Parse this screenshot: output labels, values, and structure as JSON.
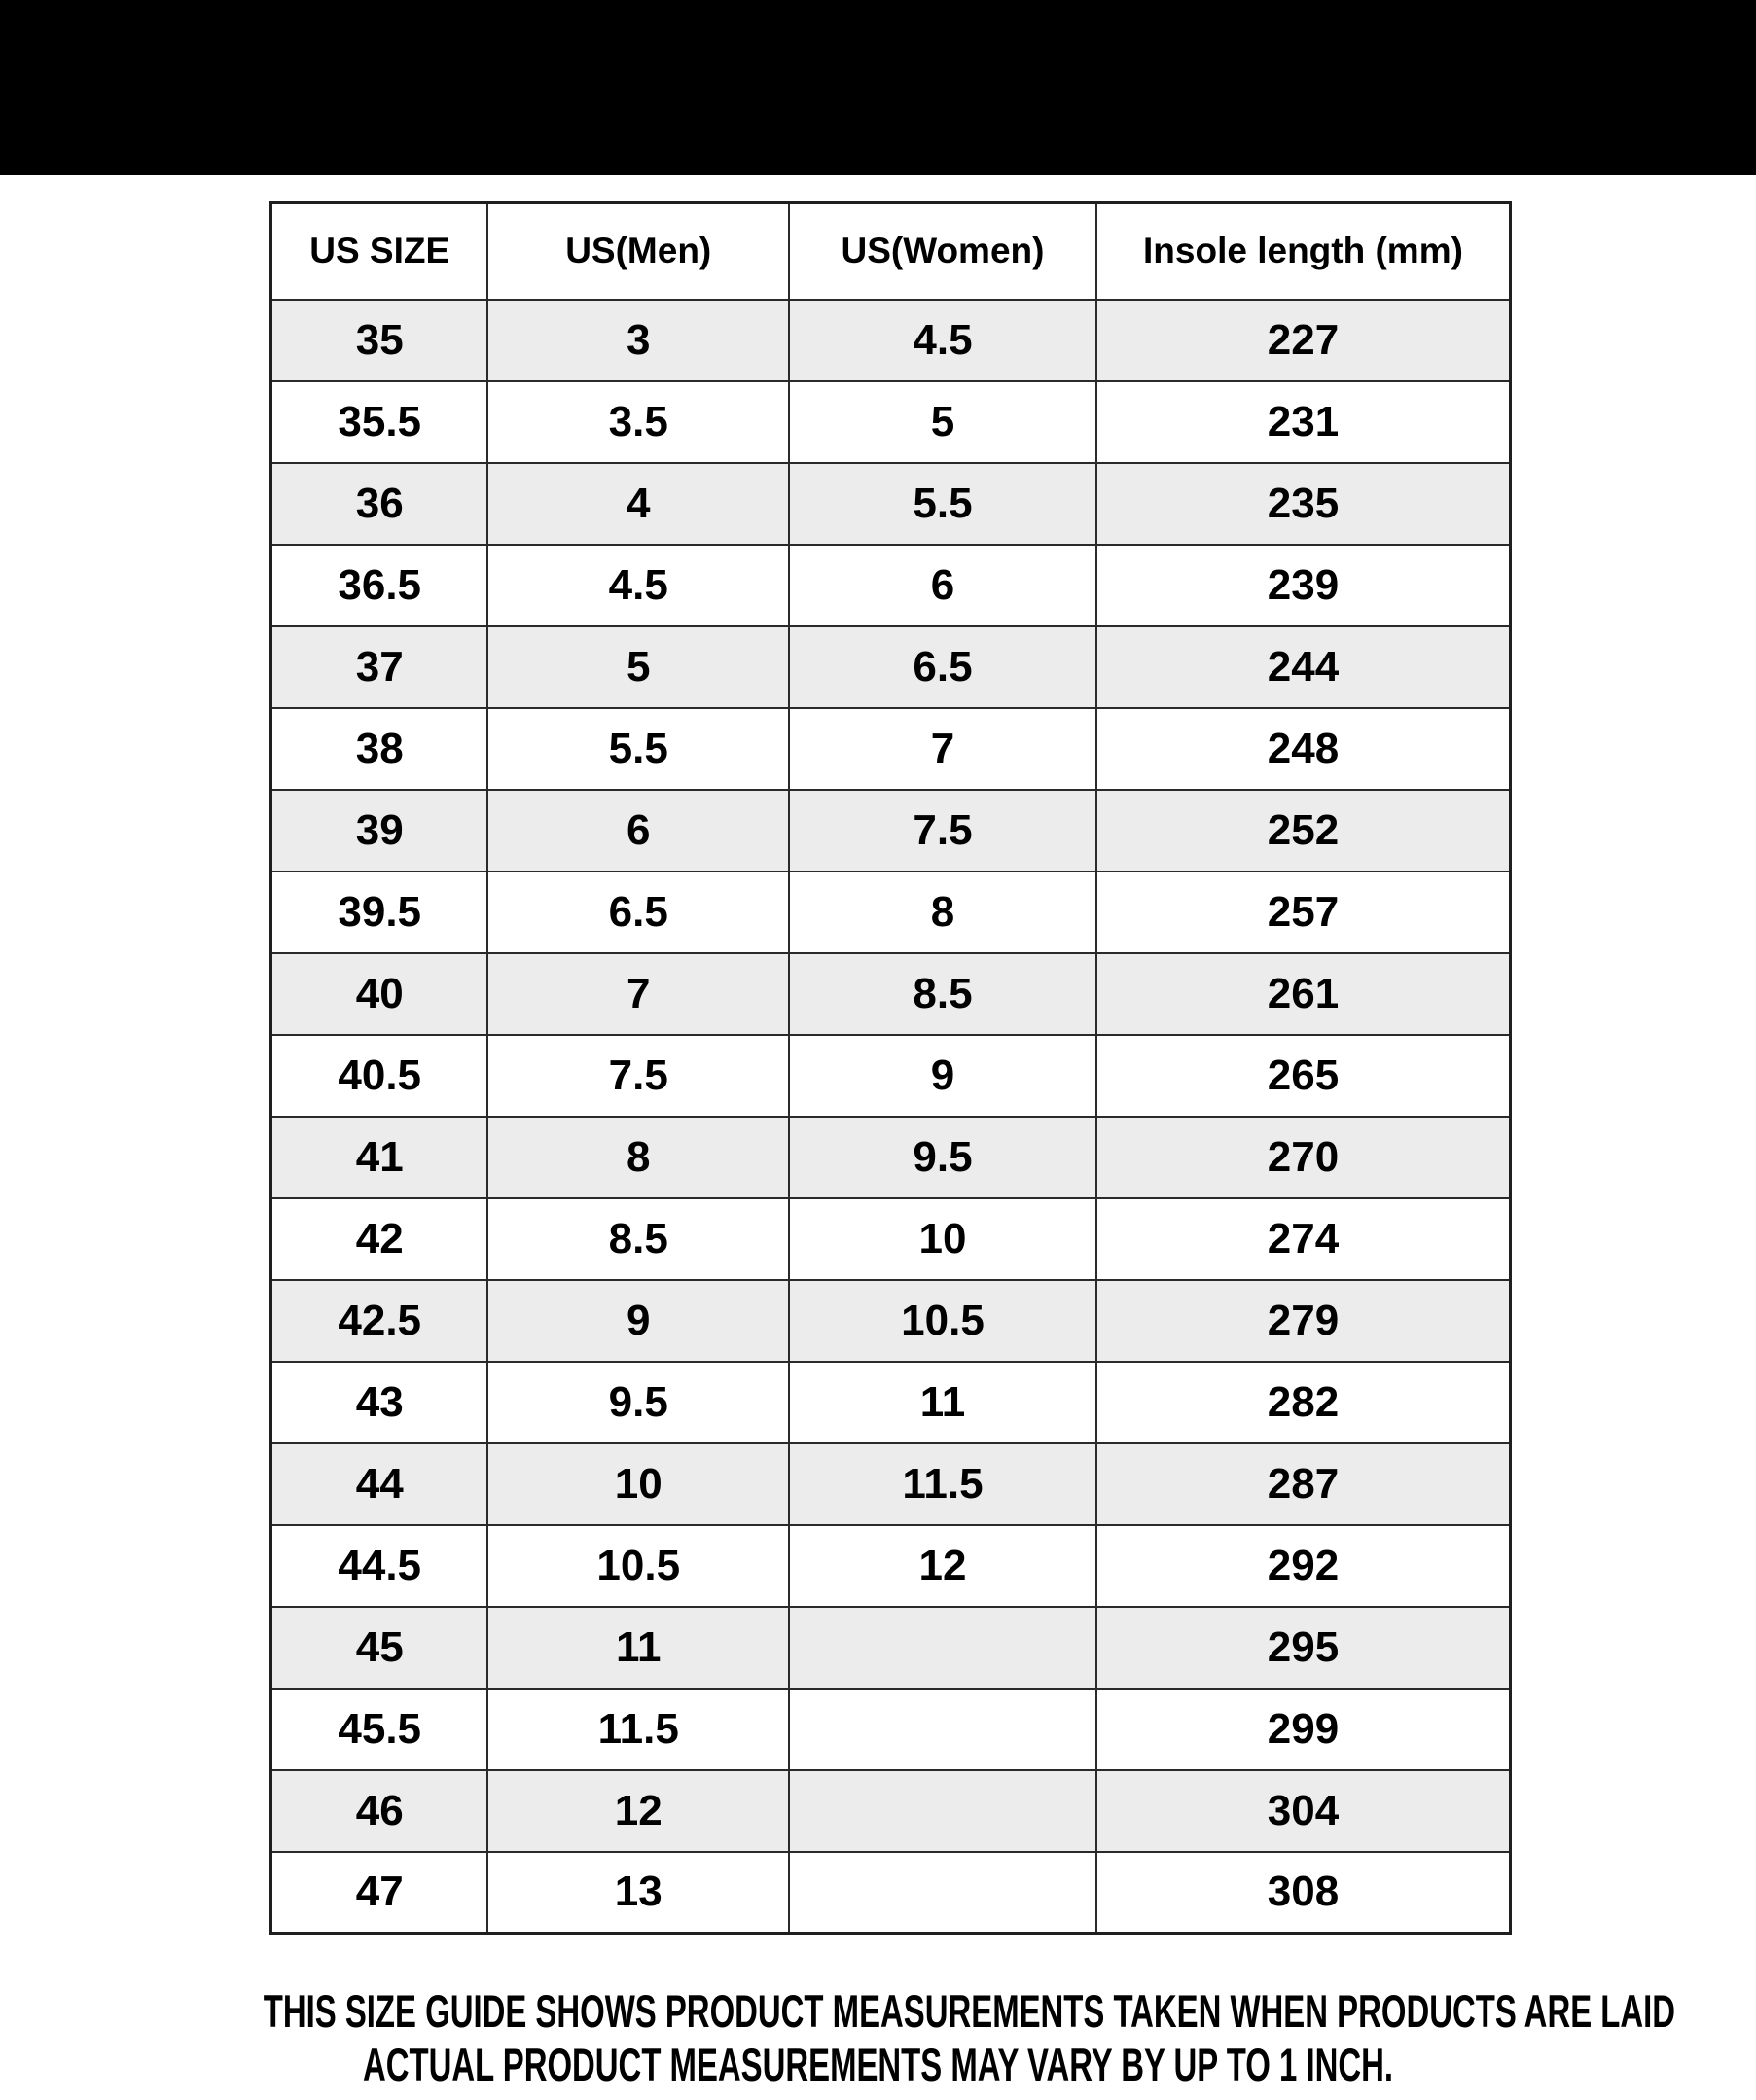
{
  "banner": {
    "color": "#000000"
  },
  "table": {
    "headers": [
      "US SIZE",
      "US(Men)",
      "US(Women)",
      "Insole length (mm)"
    ],
    "rows": [
      {
        "us_size": "35",
        "us_men": "3",
        "us_women": "4.5",
        "insole_mm": "227"
      },
      {
        "us_size": "35.5",
        "us_men": "3.5",
        "us_women": "5",
        "insole_mm": "231"
      },
      {
        "us_size": "36",
        "us_men": "4",
        "us_women": "5.5",
        "insole_mm": "235"
      },
      {
        "us_size": "36.5",
        "us_men": "4.5",
        "us_women": "6",
        "insole_mm": "239"
      },
      {
        "us_size": "37",
        "us_men": "5",
        "us_women": "6.5",
        "insole_mm": "244"
      },
      {
        "us_size": "38",
        "us_men": "5.5",
        "us_women": "7",
        "insole_mm": "248"
      },
      {
        "us_size": "39",
        "us_men": "6",
        "us_women": "7.5",
        "insole_mm": "252"
      },
      {
        "us_size": "39.5",
        "us_men": "6.5",
        "us_women": "8",
        "insole_mm": "257"
      },
      {
        "us_size": "40",
        "us_men": "7",
        "us_women": "8.5",
        "insole_mm": "261"
      },
      {
        "us_size": "40.5",
        "us_men": "7.5",
        "us_women": "9",
        "insole_mm": "265"
      },
      {
        "us_size": "41",
        "us_men": "8",
        "us_women": "9.5",
        "insole_mm": "270"
      },
      {
        "us_size": "42",
        "us_men": "8.5",
        "us_women": "10",
        "insole_mm": "274"
      },
      {
        "us_size": "42.5",
        "us_men": "9",
        "us_women": "10.5",
        "insole_mm": "279"
      },
      {
        "us_size": "43",
        "us_men": "9.5",
        "us_women": "11",
        "insole_mm": "282"
      },
      {
        "us_size": "44",
        "us_men": "10",
        "us_women": "11.5",
        "insole_mm": "287"
      },
      {
        "us_size": "44.5",
        "us_men": "10.5",
        "us_women": "12",
        "insole_mm": "292"
      },
      {
        "us_size": "45",
        "us_men": "11",
        "us_women": "",
        "insole_mm": "295"
      },
      {
        "us_size": "45.5",
        "us_men": "11.5",
        "us_women": "",
        "insole_mm": "299"
      },
      {
        "us_size": "46",
        "us_men": "12",
        "us_women": "",
        "insole_mm": "304"
      },
      {
        "us_size": "47",
        "us_men": "13",
        "us_women": "",
        "insole_mm": "308"
      }
    ]
  },
  "footer": {
    "line1": "THIS SIZE GUIDE SHOWS PRODUCT MEASUREMENTS TAKEN WHEN PRODUCTS ARE LAID",
    "line2": "ACTUAL PRODUCT MEASUREMENTS MAY VARY BY UP TO 1 INCH."
  },
  "colors": {
    "stripe": "#ececec",
    "border": "#2a2a2a",
    "text": "#000000",
    "background": "#ffffff"
  }
}
